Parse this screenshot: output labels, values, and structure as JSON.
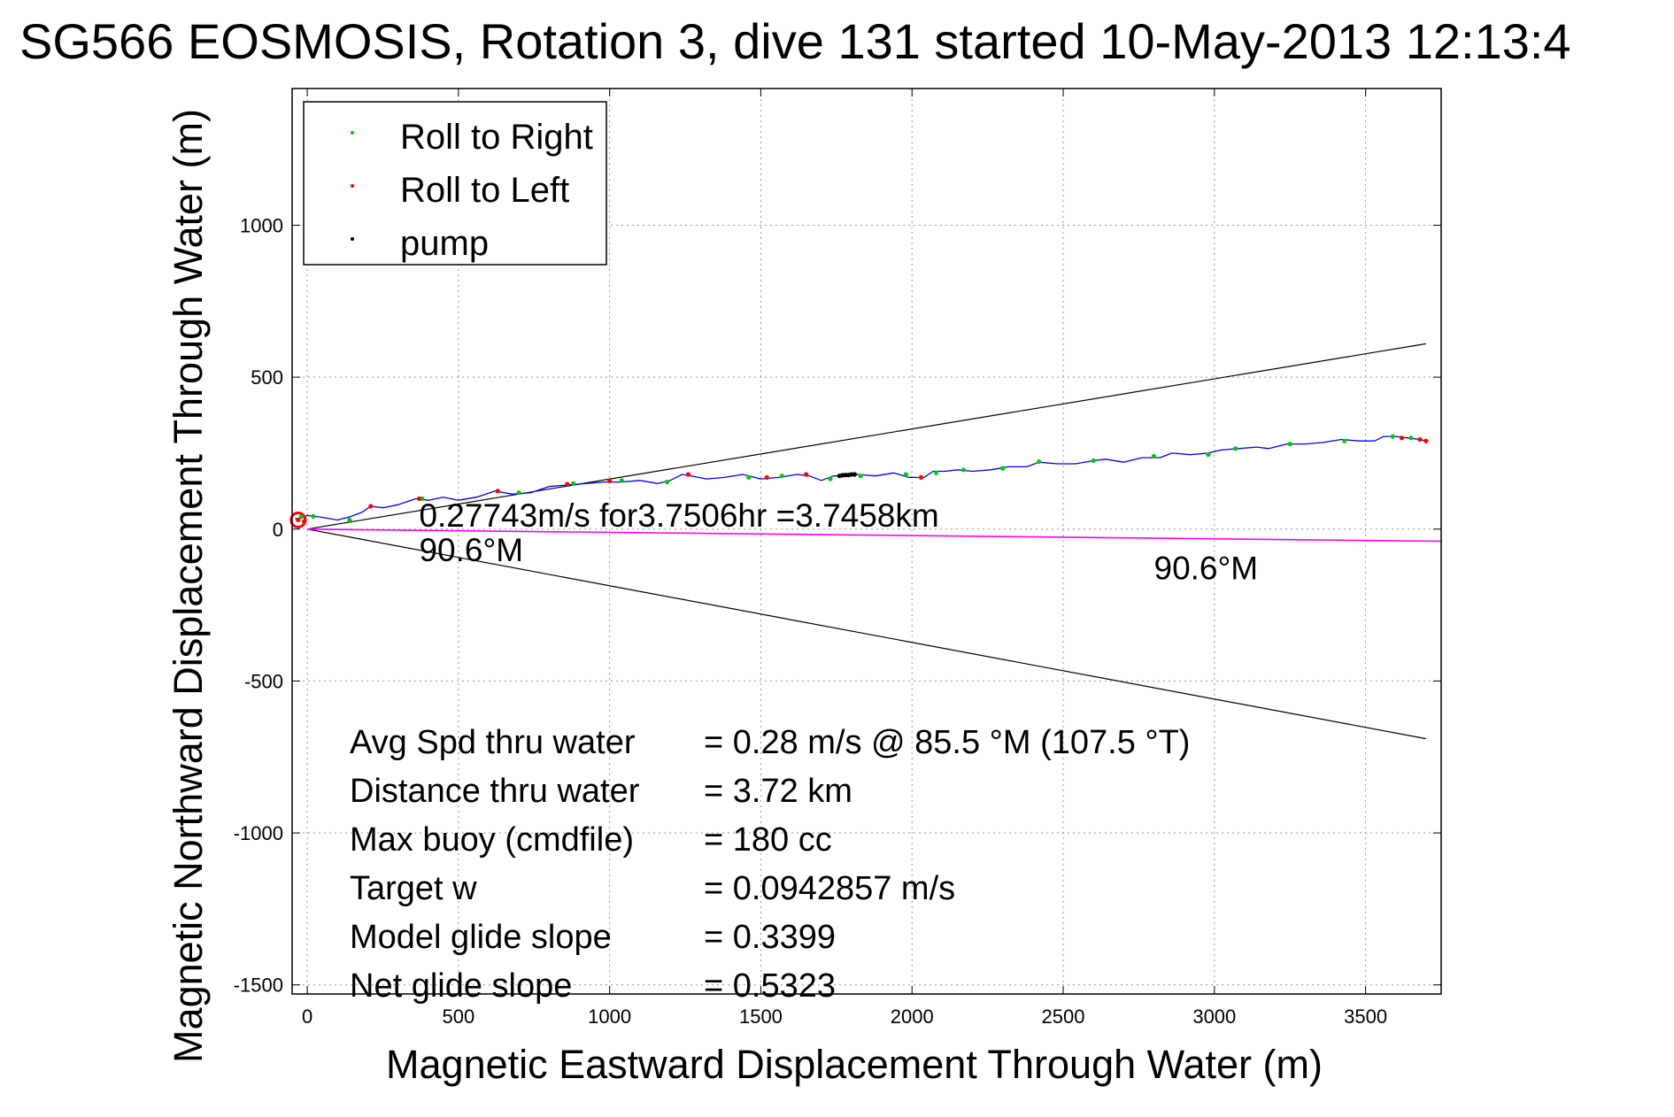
{
  "colors": {
    "track": "#0000ff",
    "roll_right": "#00cc00",
    "roll_left": "#ff0000",
    "pump": "#000000",
    "current": "#ff00ff",
    "cone": "#000000",
    "grid": "#999999"
  },
  "chart_data": {
    "type": "line",
    "title": "SG566 EOSMOSIS, Rotation 3, dive 131 started 10-May-2013 12:13:4",
    "xlabel": "Magnetic Eastward Displacement Through Water (m)",
    "ylabel": "Magnetic Northward Displacement Through Water (m)",
    "xlim": [
      -50,
      3750
    ],
    "ylim": [
      -1530,
      1450
    ],
    "xticks": [
      0,
      500,
      1000,
      1500,
      2000,
      2500,
      3000,
      3500
    ],
    "xtick_labels": [
      "0",
      "500",
      "1000",
      "1500",
      "2000",
      "2500",
      "3000",
      "3500"
    ],
    "yticks": [
      -1500,
      -1000,
      -500,
      0,
      500,
      1000
    ],
    "ytick_labels": [
      "-1500",
      "-1000",
      "-500",
      "0",
      "500",
      "1000"
    ],
    "grid": true,
    "legend_placement": "top-left",
    "legend": [
      {
        "label": "Roll to Right",
        "color": "#00cc00"
      },
      {
        "label": "Roll to Left",
        "color": "#ff0000"
      },
      {
        "label": "pump",
        "color": "#000000"
      }
    ],
    "series": [
      {
        "name": "track",
        "x": [
          -40,
          -25,
          0,
          40,
          100,
          140,
          180,
          210,
          250,
          300,
          360,
          400,
          450,
          500,
          560,
          620,
          680,
          740,
          800,
          860,
          920,
          980,
          1040,
          1100,
          1160,
          1200,
          1240,
          1270,
          1320,
          1380,
          1440,
          1500,
          1560,
          1620,
          1660,
          1700,
          1740,
          1780,
          1820,
          1880,
          1940,
          1990,
          2040,
          2070,
          2110,
          2150,
          2200,
          2260,
          2320,
          2380,
          2420,
          2480,
          2540,
          2600,
          2640,
          2700,
          2760,
          2820,
          2860,
          2920,
          2980,
          3020,
          3080,
          3140,
          3180,
          3240,
          3300,
          3360,
          3420,
          3480,
          3530,
          3560,
          3600,
          3640,
          3680,
          3700
        ],
        "y": [
          35,
          35,
          45,
          40,
          30,
          40,
          55,
          75,
          70,
          80,
          100,
          95,
          105,
          95,
          105,
          125,
          115,
          120,
          140,
          145,
          150,
          155,
          155,
          160,
          150,
          160,
          180,
          175,
          165,
          170,
          180,
          165,
          170,
          180,
          175,
          160,
          175,
          175,
          180,
          175,
          185,
          170,
          170,
          190,
          190,
          195,
          190,
          195,
          205,
          205,
          220,
          215,
          215,
          225,
          230,
          220,
          235,
          235,
          250,
          245,
          250,
          260,
          265,
          270,
          265,
          280,
          280,
          285,
          295,
          290,
          290,
          305,
          305,
          300,
          295,
          290
        ]
      },
      {
        "name": "roll_right",
        "x": [
          -20,
          20,
          140,
          380,
          700,
          880,
          1040,
          1190,
          1460,
          1570,
          1730,
          1830,
          1980,
          2080,
          2170,
          2300,
          2420,
          2600,
          2800,
          2980,
          3070,
          3250,
          3430,
          3590,
          3650
        ],
        "y": [
          40,
          42,
          30,
          100,
          120,
          150,
          160,
          155,
          170,
          175,
          165,
          175,
          180,
          185,
          195,
          200,
          222,
          225,
          240,
          245,
          265,
          280,
          290,
          305,
          300
        ]
      },
      {
        "name": "roll_left",
        "x": [
          -30,
          -10,
          210,
          370,
          630,
          860,
          1000,
          1260,
          1520,
          1650,
          2030,
          3620,
          3680,
          3700
        ],
        "y": [
          30,
          25,
          75,
          100,
          125,
          148,
          158,
          180,
          170,
          180,
          170,
          300,
          295,
          290
        ]
      },
      {
        "name": "pump",
        "x": [
          1760,
          1770,
          1780,
          1790,
          1800,
          1810
        ],
        "y": [
          175,
          177,
          178,
          178,
          180,
          180
        ]
      },
      {
        "name": "current",
        "x": [
          0,
          3750
        ],
        "y": [
          0,
          -40
        ]
      },
      {
        "name": "cone_upper",
        "x": [
          0,
          3700
        ],
        "y": [
          0,
          610
        ]
      },
      {
        "name": "cone_lower",
        "x": [
          0,
          3700
        ],
        "y": [
          0,
          -690
        ]
      }
    ],
    "annotations": [
      {
        "text": "0.27743m/s for3.7506hr =3.7458km",
        "x": 370,
        "y": 8
      },
      {
        "text": "90.6°M",
        "x": 370,
        "y": -105
      },
      {
        "text": "90.6°M",
        "x": 2800,
        "y": -165
      }
    ],
    "stats": [
      {
        "label": "Avg Spd thru water",
        "value": "=  0.28 m/s @  85.5 °M (107.5 °T)"
      },
      {
        "label": "Distance thru water",
        "value": "=  3.72 km"
      },
      {
        "label": "Max buoy (cmdfile)",
        "value": "= 180 cc"
      },
      {
        "label": "Target w",
        "value": "= 0.0942857 m/s"
      },
      {
        "label": "Model glide slope",
        "value": "= 0.3399"
      },
      {
        "label": "Net glide slope",
        "value": "= 0.5323"
      }
    ]
  }
}
